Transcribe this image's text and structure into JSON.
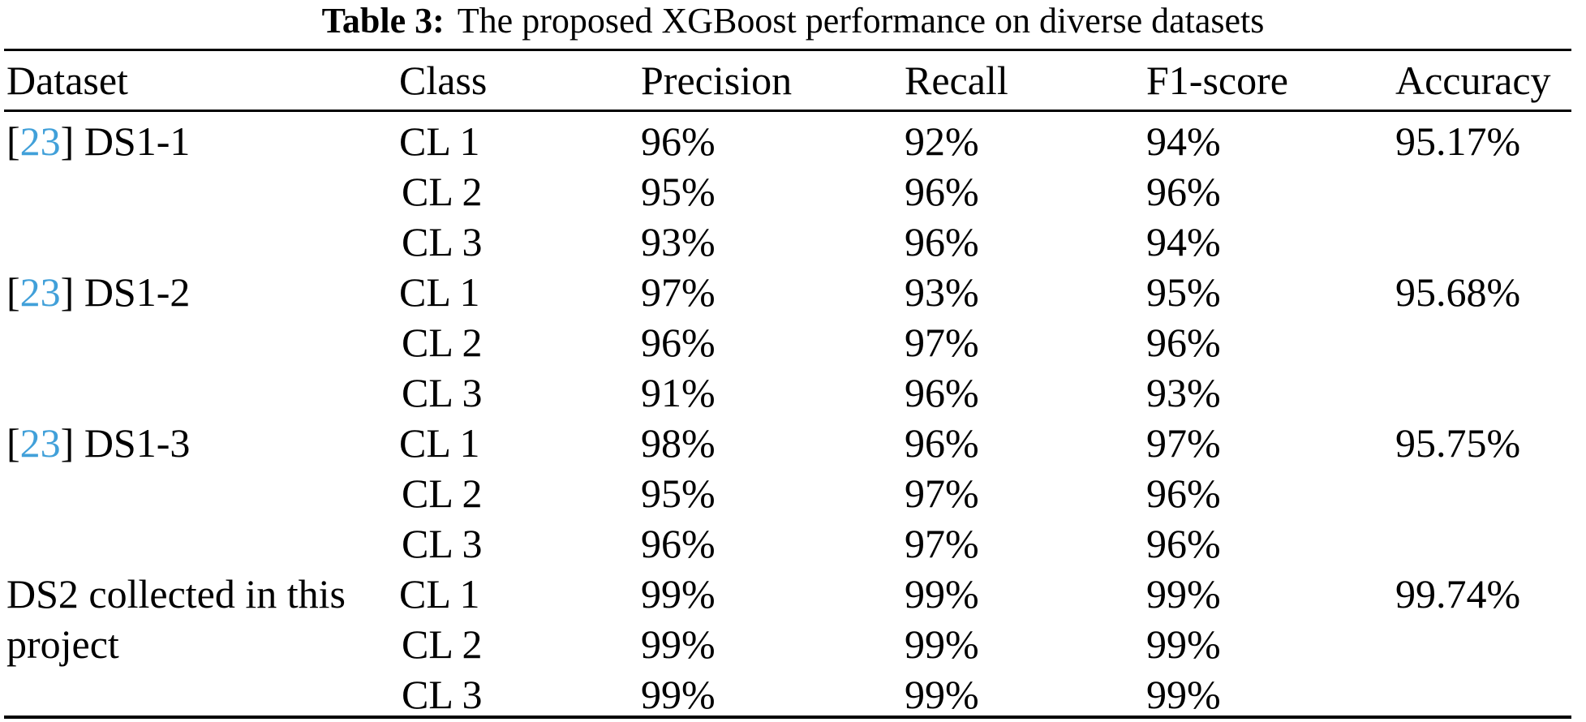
{
  "caption": {
    "label": "Table 3:",
    "text": "The proposed XGBoost performance on diverse datasets"
  },
  "columns": [
    "Dataset",
    "Class",
    "Precision",
    "Recall",
    "F1-score",
    "Accuracy"
  ],
  "groups": [
    {
      "citation": "23",
      "dataset": "DS1-1",
      "accuracy": "95.17%",
      "rows": [
        {
          "class": "CL 1",
          "precision": "96%",
          "recall": "92%",
          "f1": "94%"
        },
        {
          "class": "CL 2",
          "precision": "95%",
          "recall": "96%",
          "f1": "96%"
        },
        {
          "class": "CL 3",
          "precision": "93%",
          "recall": "96%",
          "f1": "94%"
        }
      ]
    },
    {
      "citation": "23",
      "dataset": "DS1-2",
      "accuracy": "95.68%",
      "rows": [
        {
          "class": "CL 1",
          "precision": "97%",
          "recall": "93%",
          "f1": "95%"
        },
        {
          "class": "CL 2",
          "precision": "96%",
          "recall": "97%",
          "f1": "96%"
        },
        {
          "class": "CL 3",
          "precision": "91%",
          "recall": "96%",
          "f1": "93%"
        }
      ]
    },
    {
      "citation": "23",
      "dataset": "DS1-3",
      "accuracy": "95.75%",
      "rows": [
        {
          "class": "CL 1",
          "precision": "98%",
          "recall": "96%",
          "f1": "97%"
        },
        {
          "class": "CL 2",
          "precision": "95%",
          "recall": "97%",
          "f1": "96%"
        },
        {
          "class": "CL 3",
          "precision": "96%",
          "recall": "97%",
          "f1": "96%"
        }
      ]
    },
    {
      "citation": null,
      "dataset": "DS2 collected in this project",
      "accuracy": "99.74%",
      "rows": [
        {
          "class": "CL 1",
          "precision": "99%",
          "recall": "99%",
          "f1": "99%"
        },
        {
          "class": "CL 2",
          "precision": "99%",
          "recall": "99%",
          "f1": "99%"
        },
        {
          "class": "CL 3",
          "precision": "99%",
          "recall": "99%",
          "f1": "99%"
        }
      ]
    }
  ],
  "citation_brackets": {
    "open": "[",
    "close": "]"
  },
  "colors": {
    "citation_link": "#41a0d9",
    "text": "#000000",
    "rule": "#000000",
    "background": "#ffffff"
  }
}
